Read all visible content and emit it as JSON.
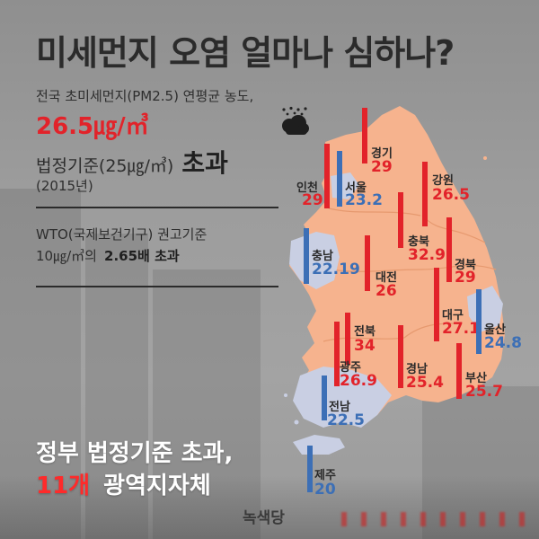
{
  "title": "미세먼지 오염 얼마나 심하나?",
  "info": {
    "line1": "전국 초미세먼지(PM2.5) 연평균 농도,",
    "value": "26.5㎍/㎥",
    "standard_prefix": "법정기준(25㎍/㎥)",
    "standard_word": "초과",
    "year": "(2015년)",
    "who_line1": "WTO(국제보건기구) 권고기준",
    "who_line2_prefix": "10㎍/㎥의",
    "who_line2_bold": "2.65배 초과"
  },
  "footer": {
    "line1": "정부 법정기준 초과,",
    "line2_red": "11개",
    "line2_rest": "광역지자체"
  },
  "brand": "녹색당",
  "icon": "dust-cloud-icon",
  "colors": {
    "over": "#e2232a",
    "under": "#3c6fb6",
    "map_over": "#f6b38e",
    "map_under": "#c9cfe3"
  },
  "regions": [
    {
      "name": "경기",
      "value": "29",
      "status": "over"
    },
    {
      "name": "인천",
      "value": "29",
      "status": "over"
    },
    {
      "name": "서울",
      "value": "23.2",
      "status": "under"
    },
    {
      "name": "강원",
      "value": "26.5",
      "status": "over"
    },
    {
      "name": "충남",
      "value": "22.19",
      "status": "under"
    },
    {
      "name": "충북",
      "value": "32.9",
      "status": "over"
    },
    {
      "name": "대전",
      "value": "26",
      "status": "over"
    },
    {
      "name": "경북",
      "value": "29",
      "status": "over"
    },
    {
      "name": "대구",
      "value": "27.1",
      "status": "over"
    },
    {
      "name": "울산",
      "value": "24.8",
      "status": "under"
    },
    {
      "name": "전북",
      "value": "34",
      "status": "over"
    },
    {
      "name": "광주",
      "value": "26.9",
      "status": "over"
    },
    {
      "name": "경남",
      "value": "25.4",
      "status": "over"
    },
    {
      "name": "부산",
      "value": "25.7",
      "status": "over"
    },
    {
      "name": "전남",
      "value": "22.5",
      "status": "under"
    },
    {
      "name": "제주",
      "value": "20",
      "status": "under"
    }
  ]
}
